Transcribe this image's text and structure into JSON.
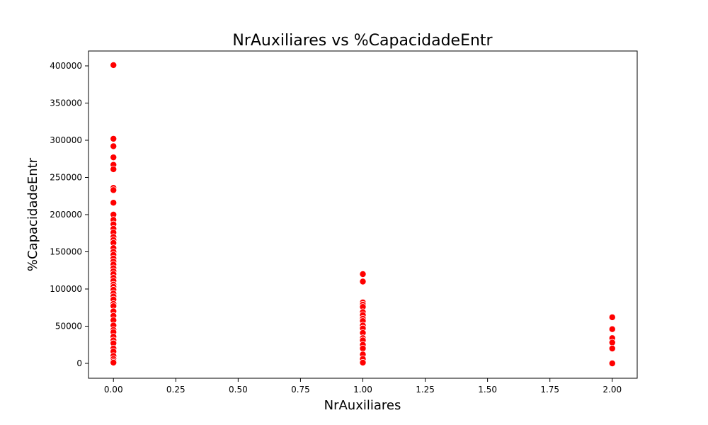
{
  "chart_data": {
    "type": "scatter",
    "title": "NrAuxiliares vs %CapacidadeEntr",
    "xlabel": "NrAuxiliares",
    "ylabel": "%CapacidadeEntr",
    "xlim": [
      -0.1,
      2.1
    ],
    "ylim": [
      -20000,
      420000
    ],
    "xticks": [
      0.0,
      0.25,
      0.5,
      0.75,
      1.0,
      1.25,
      1.5,
      1.75,
      2.0
    ],
    "xtick_labels": [
      "0.00",
      "0.25",
      "0.50",
      "0.75",
      "1.00",
      "1.25",
      "1.50",
      "1.75",
      "2.00"
    ],
    "yticks": [
      0,
      50000,
      100000,
      150000,
      200000,
      250000,
      300000,
      350000,
      400000
    ],
    "ytick_labels": [
      "0",
      "50000",
      "100000",
      "150000",
      "200000",
      "250000",
      "300000",
      "350000",
      "400000"
    ],
    "grid": false,
    "marker_color": "#ff0000",
    "marker_edge_color": "#ffffff",
    "points": [
      {
        "x": 0,
        "y": 401000
      },
      {
        "x": 0,
        "y": 302000
      },
      {
        "x": 0,
        "y": 292000
      },
      {
        "x": 0,
        "y": 277000
      },
      {
        "x": 0,
        "y": 267000
      },
      {
        "x": 0,
        "y": 261000
      },
      {
        "x": 0,
        "y": 236000
      },
      {
        "x": 0,
        "y": 233000
      },
      {
        "x": 0,
        "y": 216000
      },
      {
        "x": 0,
        "y": 200000
      },
      {
        "x": 0,
        "y": 193000
      },
      {
        "x": 0,
        "y": 187000
      },
      {
        "x": 0,
        "y": 181000
      },
      {
        "x": 0,
        "y": 176000
      },
      {
        "x": 0,
        "y": 170000
      },
      {
        "x": 0,
        "y": 166000
      },
      {
        "x": 0,
        "y": 162000
      },
      {
        "x": 0,
        "y": 155000
      },
      {
        "x": 0,
        "y": 150000
      },
      {
        "x": 0,
        "y": 146000
      },
      {
        "x": 0,
        "y": 141000
      },
      {
        "x": 0,
        "y": 137000
      },
      {
        "x": 0,
        "y": 133000
      },
      {
        "x": 0,
        "y": 128000
      },
      {
        "x": 0,
        "y": 124000
      },
      {
        "x": 0,
        "y": 120000
      },
      {
        "x": 0,
        "y": 115000
      },
      {
        "x": 0,
        "y": 111000
      },
      {
        "x": 0,
        "y": 106000
      },
      {
        "x": 0,
        "y": 103000
      },
      {
        "x": 0,
        "y": 99000
      },
      {
        "x": 0,
        "y": 94000
      },
      {
        "x": 0,
        "y": 90000
      },
      {
        "x": 0,
        "y": 86000
      },
      {
        "x": 0,
        "y": 80000
      },
      {
        "x": 0,
        "y": 77000
      },
      {
        "x": 0,
        "y": 70000
      },
      {
        "x": 0,
        "y": 64000
      },
      {
        "x": 0,
        "y": 58000
      },
      {
        "x": 0,
        "y": 51000
      },
      {
        "x": 0,
        "y": 45000
      },
      {
        "x": 0,
        "y": 42000
      },
      {
        "x": 0,
        "y": 36000
      },
      {
        "x": 0,
        "y": 31000
      },
      {
        "x": 0,
        "y": 27000
      },
      {
        "x": 0,
        "y": 20000
      },
      {
        "x": 0,
        "y": 16000
      },
      {
        "x": 0,
        "y": 10000
      },
      {
        "x": 0,
        "y": 6000
      },
      {
        "x": 0,
        "y": 3000
      },
      {
        "x": 0,
        "y": 1000
      },
      {
        "x": 1,
        "y": 120000
      },
      {
        "x": 1,
        "y": 110000
      },
      {
        "x": 1,
        "y": 82000
      },
      {
        "x": 1,
        "y": 79000
      },
      {
        "x": 1,
        "y": 76000
      },
      {
        "x": 1,
        "y": 69000
      },
      {
        "x": 1,
        "y": 65000
      },
      {
        "x": 1,
        "y": 60000
      },
      {
        "x": 1,
        "y": 57000
      },
      {
        "x": 1,
        "y": 51000
      },
      {
        "x": 1,
        "y": 47000
      },
      {
        "x": 1,
        "y": 41000
      },
      {
        "x": 1,
        "y": 34000
      },
      {
        "x": 1,
        "y": 31000
      },
      {
        "x": 1,
        "y": 25000
      },
      {
        "x": 1,
        "y": 20000
      },
      {
        "x": 1,
        "y": 12000
      },
      {
        "x": 1,
        "y": 6000
      },
      {
        "x": 1,
        "y": 1000
      },
      {
        "x": 2,
        "y": 62000
      },
      {
        "x": 2,
        "y": 46000
      },
      {
        "x": 2,
        "y": 34000
      },
      {
        "x": 2,
        "y": 28000
      },
      {
        "x": 2,
        "y": 20000
      },
      {
        "x": 2,
        "y": 0
      }
    ]
  }
}
